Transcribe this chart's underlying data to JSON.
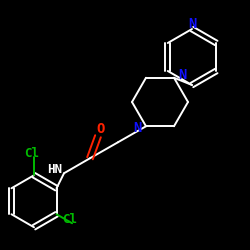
{
  "background_color": "#000000",
  "bond_color": "#ffffff",
  "nitrogen_color": "#1111ff",
  "oxygen_color": "#ff2200",
  "chlorine_color": "#00bb00",
  "figsize": [
    2.5,
    2.5
  ],
  "dpi": 100,
  "xlim": [
    0,
    250
  ],
  "ylim": [
    0,
    250
  ]
}
